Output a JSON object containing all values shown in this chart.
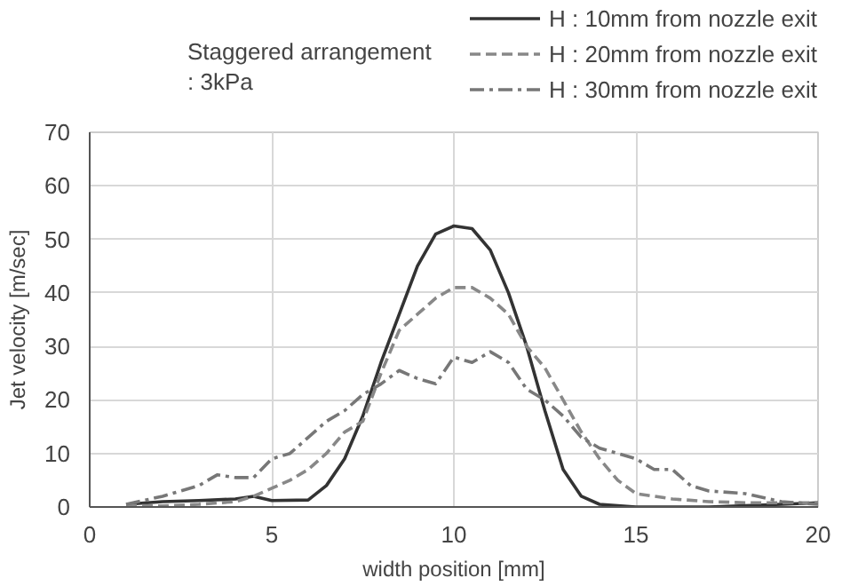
{
  "chart_data": {
    "type": "line",
    "xlabel": "width position [mm]",
    "ylabel": "Jet velocity [m/sec]",
    "annotations": [
      "Staggered arrangement\n : 3kPa"
    ],
    "xlim": [
      0,
      20
    ],
    "xticks": [
      0,
      5,
      10,
      15,
      20
    ],
    "ylim": [
      0,
      70
    ],
    "yticks": [
      0,
      10,
      20,
      30,
      40,
      50,
      60,
      70
    ],
    "grid": true,
    "legend": "top right",
    "series": [
      {
        "name": "H : 10mm from nozzle exit",
        "color": "#333333",
        "line_style": "solid",
        "x": [
          1,
          2,
          3,
          4,
          4.5,
          5,
          6,
          6.5,
          7,
          7.5,
          8,
          8.5,
          9,
          9.5,
          10,
          10.5,
          11,
          11.5,
          12,
          12.5,
          13,
          13.5,
          14,
          15,
          17,
          19,
          20
        ],
        "values": [
          0.5,
          1,
          1.2,
          1.5,
          2,
          1.2,
          1.3,
          4,
          9,
          17,
          27,
          36,
          45,
          51,
          52.5,
          52,
          48,
          40,
          30,
          18,
          7,
          2,
          0.5,
          0,
          0,
          0.5,
          0.8
        ]
      },
      {
        "name": "H : 20mm from nozzle exit",
        "color": "#888888",
        "line_style": "dashed",
        "x": [
          1,
          2,
          3,
          4,
          4.5,
          5,
          5.5,
          6,
          6.5,
          7,
          7.5,
          8,
          8.5,
          9,
          9.5,
          10,
          10.5,
          11,
          11.5,
          12,
          12.5,
          13,
          13.5,
          14,
          14.5,
          15,
          16,
          17,
          18,
          20
        ],
        "values": [
          0.3,
          0.2,
          0.5,
          1,
          2,
          3.5,
          5,
          7,
          10,
          14,
          16,
          25,
          33,
          36,
          39,
          41,
          41,
          39,
          36,
          30,
          26,
          20,
          14,
          9,
          5,
          2.5,
          1.5,
          1,
          0.8,
          0.8
        ]
      },
      {
        "name": "H : 30mm from nozzle exit",
        "color": "#777777",
        "line_style": "dashdot",
        "x": [
          1,
          2,
          3,
          3.5,
          4,
          4.5,
          5,
          5.5,
          6,
          6.5,
          7,
          7.5,
          8,
          8.5,
          9,
          9.5,
          10,
          10.5,
          11,
          11.5,
          12,
          12.5,
          13,
          13.5,
          14,
          15,
          15.5,
          16,
          16.5,
          17,
          18,
          19,
          20
        ],
        "values": [
          0.5,
          2,
          4,
          6,
          5.5,
          5.5,
          9,
          10,
          13,
          16,
          18,
          21,
          23,
          25.5,
          24,
          23,
          28,
          27,
          29,
          27,
          22,
          20,
          17,
          13,
          11,
          9,
          7,
          7,
          4,
          3,
          2.5,
          1,
          0.5
        ]
      }
    ]
  }
}
